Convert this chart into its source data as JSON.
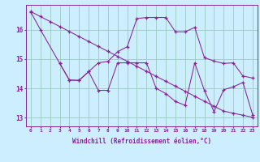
{
  "xlabel": "Windchill (Refroidissement éolien,°C)",
  "bg_color": "#cceeff",
  "line_color": "#882299",
  "grid_color": "#99ccbb",
  "xlim": [
    -0.5,
    23.5
  ],
  "ylim": [
    12.7,
    16.85
  ],
  "yticks": [
    13,
    14,
    15,
    16
  ],
  "xticks": [
    0,
    1,
    2,
    3,
    4,
    5,
    6,
    7,
    8,
    9,
    10,
    11,
    12,
    13,
    14,
    15,
    16,
    17,
    18,
    19,
    20,
    21,
    22,
    23
  ],
  "line1_x": [
    0,
    1,
    2,
    3,
    4,
    5,
    6,
    7,
    8,
    9,
    10,
    11,
    12,
    13,
    14,
    15,
    16,
    17,
    18,
    19,
    20,
    21,
    22,
    23
  ],
  "line1_y": [
    16.62,
    16.45,
    16.28,
    16.11,
    15.94,
    15.77,
    15.6,
    15.43,
    15.26,
    15.09,
    14.92,
    14.75,
    14.58,
    14.41,
    14.24,
    14.07,
    13.9,
    13.73,
    13.56,
    13.39,
    13.22,
    13.15,
    13.08,
    13.01
  ],
  "line2_x": [
    0,
    1,
    3,
    4,
    5,
    6,
    7,
    8,
    9,
    10,
    11,
    12,
    13,
    14,
    15,
    16,
    17,
    18,
    19,
    20,
    21,
    22,
    23
  ],
  "line2_y": [
    16.6,
    16.0,
    14.85,
    14.28,
    14.27,
    14.57,
    14.87,
    14.92,
    15.25,
    15.42,
    16.38,
    16.42,
    16.42,
    16.42,
    15.93,
    15.93,
    16.08,
    15.05,
    14.93,
    14.85,
    14.87,
    14.42,
    14.35
  ],
  "line3_x": [
    3,
    4,
    5,
    6,
    7,
    8,
    9,
    10,
    11,
    12,
    13,
    14,
    15,
    16,
    17,
    18,
    19,
    20,
    21,
    22,
    23
  ],
  "line3_y": [
    14.85,
    14.28,
    14.27,
    14.57,
    13.93,
    13.93,
    14.87,
    14.87,
    14.87,
    14.87,
    14.0,
    13.82,
    13.55,
    13.42,
    14.87,
    13.93,
    13.2,
    13.95,
    14.05,
    14.2,
    13.1
  ]
}
